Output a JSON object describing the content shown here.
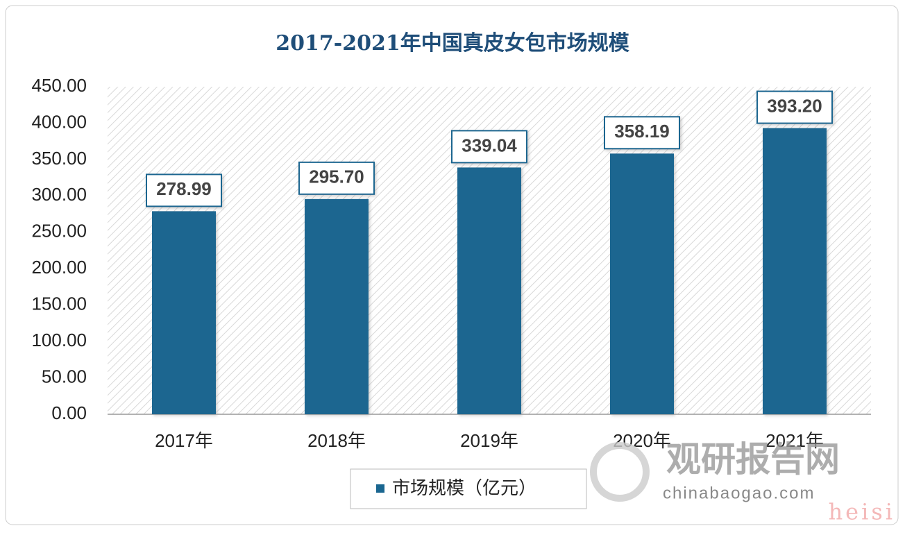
{
  "chart_data": {
    "type": "bar",
    "title": "2017-2021年中国真皮女包市场规模",
    "categories": [
      "2017年",
      "2018年",
      "2019年",
      "2020年",
      "2021年"
    ],
    "series": [
      {
        "name": "市场规模（亿元）",
        "color": "#1a6690",
        "values": [
          278.99,
          295.7,
          339.04,
          358.19,
          393.2
        ],
        "value_labels": [
          "278.99",
          "295.70",
          "339.04",
          "358.19",
          "393.20"
        ]
      }
    ],
    "ylim": [
      0,
      450
    ],
    "yticks": [
      {
        "value": 0,
        "label": "0.00"
      },
      {
        "value": 50,
        "label": "50.00"
      },
      {
        "value": 100,
        "label": "100.00"
      },
      {
        "value": 150,
        "label": "150.00"
      },
      {
        "value": 200,
        "label": "200.00"
      },
      {
        "value": 250,
        "label": "250.00"
      },
      {
        "value": 300,
        "label": "300.00"
      },
      {
        "value": 350,
        "label": "350.00"
      },
      {
        "value": 400,
        "label": "400.00"
      },
      {
        "value": 450,
        "label": "450.00"
      }
    ],
    "legend": "bottom",
    "watermark": [
      "观研报告网",
      "chinabaogao.com",
      "heisi"
    ]
  }
}
